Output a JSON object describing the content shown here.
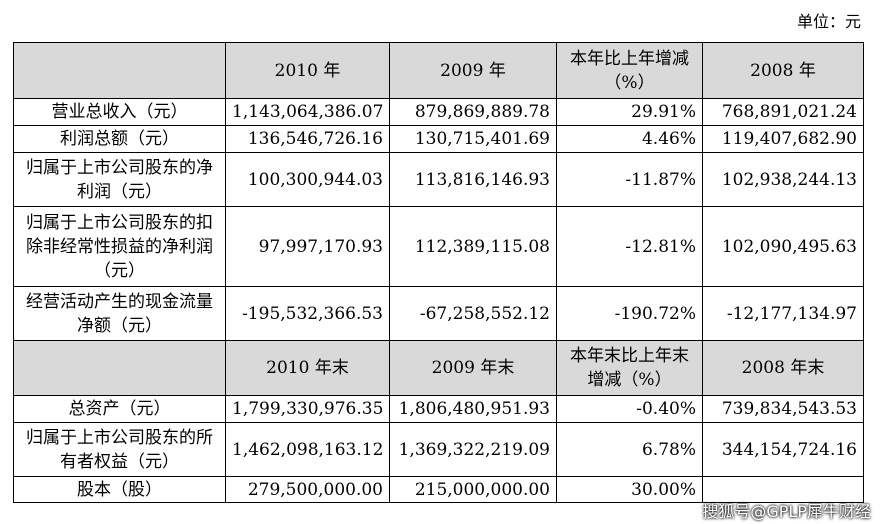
{
  "unit_label": "单位：元",
  "header1": {
    "c1": "2010 年",
    "c2": "2009 年",
    "c3": "本年比上年增减（%）",
    "c4": "2008 年"
  },
  "rows1": [
    {
      "label": "营业总收入（元）",
      "v2010": "1,143,064,386.07",
      "v2009": "879,869,889.78",
      "chg": "29.91%",
      "v2008": "768,891,021.24"
    },
    {
      "label": "利润总额（元）",
      "v2010": "136,546,726.16",
      "v2009": "130,715,401.69",
      "chg": "4.46%",
      "v2008": "119,407,682.90"
    },
    {
      "label": "归属于上市公司股东的净利润（元）",
      "v2010": "100,300,944.03",
      "v2009": "113,816,146.93",
      "chg": "-11.87%",
      "v2008": "102,938,244.13"
    },
    {
      "label": "归属于上市公司股东的扣除非经常性损益的净利润（元）",
      "v2010": "97,997,170.93",
      "v2009": "112,389,115.08",
      "chg": "-12.81%",
      "v2008": "102,090,495.63"
    },
    {
      "label": "经营活动产生的现金流量净额（元）",
      "v2010": "-195,532,366.53",
      "v2009": "-67,258,552.12",
      "chg": "-190.72%",
      "v2008": "-12,177,134.97"
    }
  ],
  "header2": {
    "c1": "2010 年末",
    "c2": "2009 年末",
    "c3": "本年末比上年末增减（%）",
    "c4": "2008 年末"
  },
  "rows2": [
    {
      "label": "总资产（元）",
      "v2010": "1,799,330,976.35",
      "v2009": "1,806,480,951.93",
      "chg": "-0.40%",
      "v2008": "739,834,543.53"
    },
    {
      "label": "归属于上市公司股东的所有者权益（元）",
      "v2010": "1,462,098,163.12",
      "v2009": "1,369,322,219.09",
      "chg": "6.78%",
      "v2008": "344,154,724.16"
    },
    {
      "label": "股本（股）",
      "v2010": "279,500,000.00",
      "v2009": "215,000,000.00",
      "chg": "30.00%",
      "v2008": ""
    }
  ],
  "watermark": "搜狐号@GPLP犀牛财经"
}
